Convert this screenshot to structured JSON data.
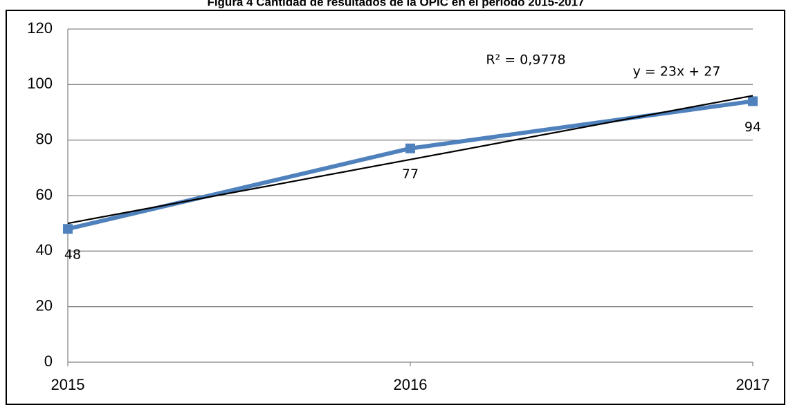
{
  "chart_data": {
    "type": "line",
    "title": "Figura 4 Cantidad de resultados de la OPIC en el periodo 2015-2017",
    "x": [
      2015,
      2016,
      2017
    ],
    "xlim": [
      2015,
      2017
    ],
    "xticks": [
      2015,
      2016,
      2017
    ],
    "ylim": [
      0,
      120
    ],
    "yticks": [
      0,
      20,
      40,
      60,
      80,
      100,
      120
    ],
    "grid": true,
    "series": [
      {
        "color": "#4f81bd",
        "values": [
          48,
          77,
          94
        ]
      }
    ],
    "trendline": {
      "color": "#000000",
      "values": [
        50,
        73,
        96
      ]
    },
    "annotations": [
      "R² = 0,9778",
      "y = 23x + 27"
    ]
  }
}
